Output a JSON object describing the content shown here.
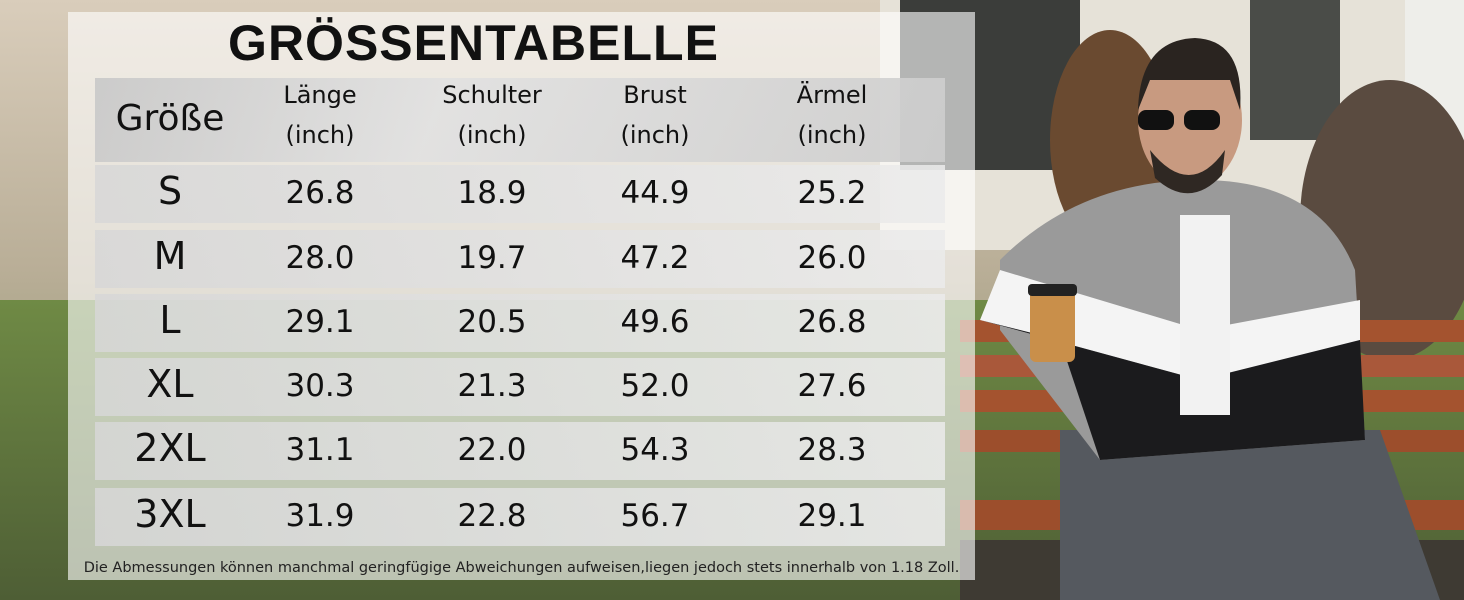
{
  "title": "GRÖSSENTABELLE",
  "table": {
    "header": [
      {
        "name": "Größe"
      },
      {
        "name": "Länge",
        "unit": "(inch)"
      },
      {
        "name": "Schulter",
        "unit": "(inch)"
      },
      {
        "name": "Brust",
        "unit": "(inch)"
      },
      {
        "name": "Ärmel",
        "unit": "(inch)"
      }
    ],
    "rows": [
      [
        "S",
        "26.8",
        "18.9",
        "44.9",
        "25.2"
      ],
      [
        "M",
        "28.0",
        "19.7",
        "47.2",
        "26.0"
      ],
      [
        "L",
        "29.1",
        "20.5",
        "49.6",
        "26.8"
      ],
      [
        "XL",
        "30.3",
        "21.3",
        "52.0",
        "27.6"
      ],
      [
        "2XL",
        "31.1",
        "22.0",
        "54.3",
        "28.3"
      ],
      [
        "3XL",
        "31.9",
        "22.8",
        "56.7",
        "29.1"
      ]
    ]
  },
  "note": "Die Abmessungen können manchmal geringfügige Abweichungen aufweisen,liegen jedoch stets innerhalb von 1.18 Zoll."
}
